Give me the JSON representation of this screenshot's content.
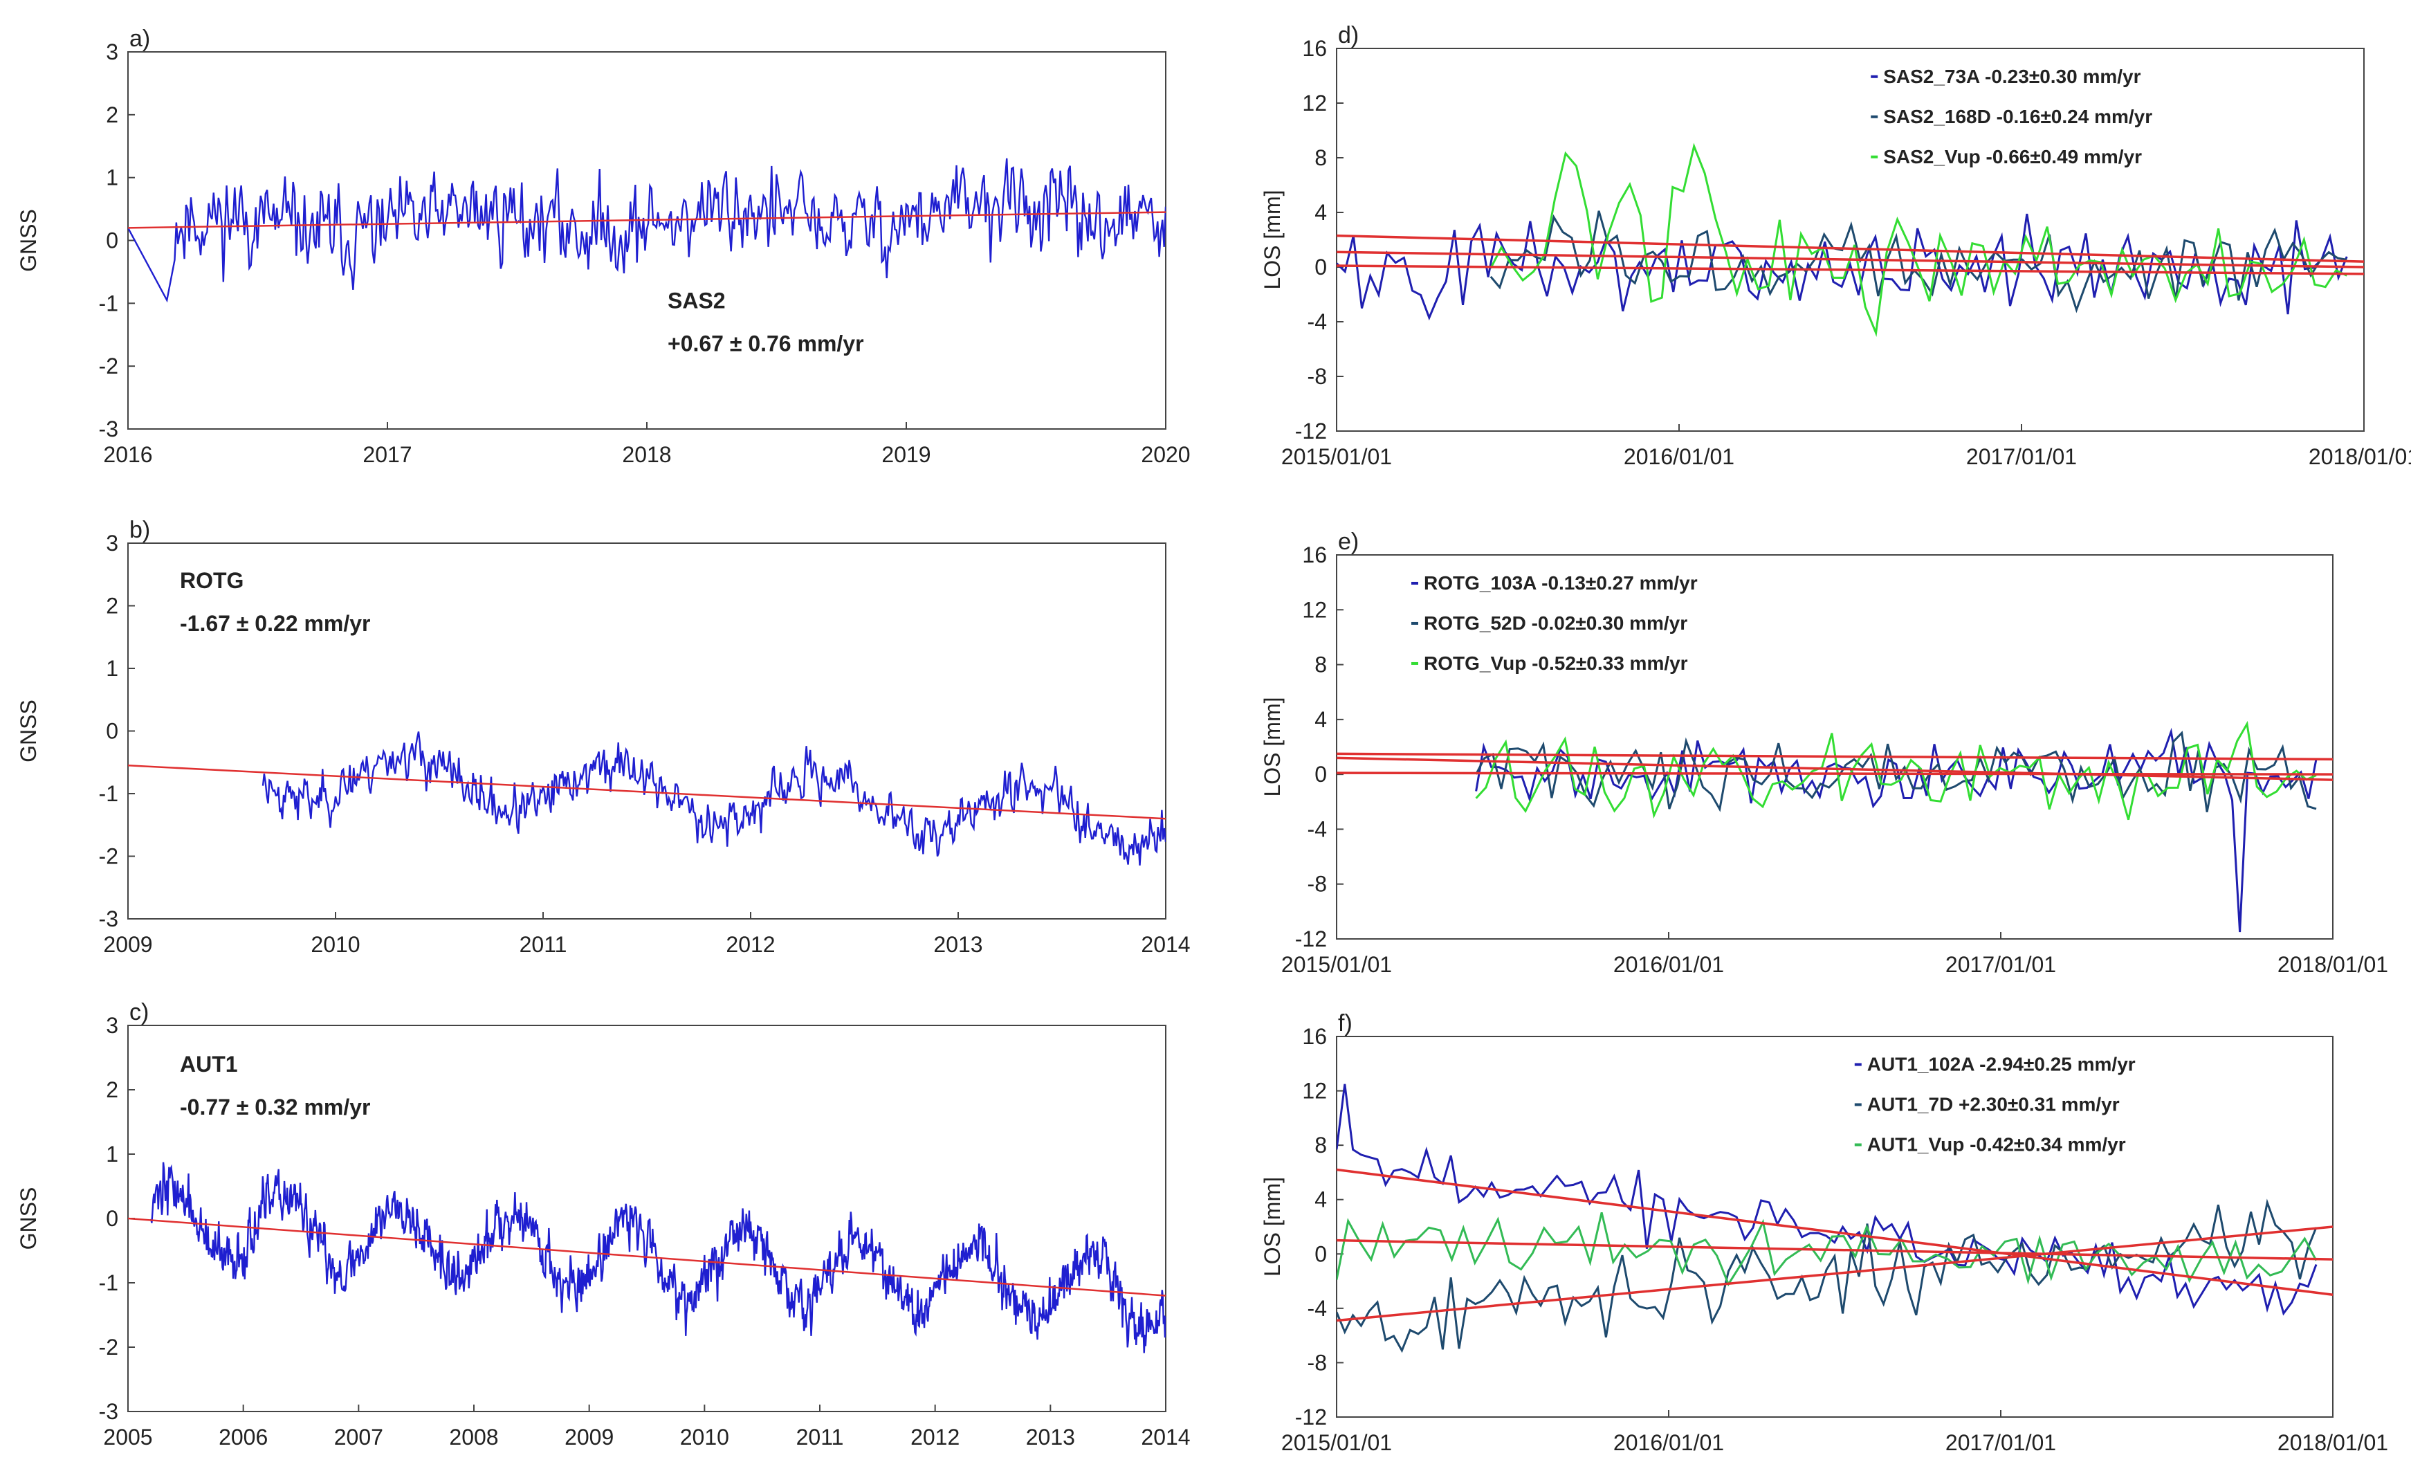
{
  "chart_data": [
    {
      "panel": "a)",
      "type": "line",
      "ylabel": "GNSS",
      "xlim": [
        2016,
        2020
      ],
      "ylim": [
        -3,
        3
      ],
      "xticks": [
        "2016",
        "2017",
        "2018",
        "2019",
        "2020"
      ],
      "yticks": [
        "3",
        "2",
        "1",
        "0",
        "-1",
        "-2",
        "-3"
      ],
      "station": "SAS2",
      "rate": "+0.67 ± 0.76 mm/yr",
      "annotation_position": "lower-middle",
      "series": [
        {
          "name": "SAS2 daily",
          "color": "#1f1fd0",
          "x_start": 2016.0,
          "x_end": 2020.0,
          "data_start": 2016.0,
          "gap": [
            2016.0,
            2016.2
          ],
          "amplitude": 0.85,
          "seasonal": 0.15,
          "seed": 11
        }
      ],
      "trend": {
        "color": "#e03030",
        "x": [
          2016,
          2020
        ],
        "y": [
          0.2,
          0.45
        ]
      }
    },
    {
      "panel": "b)",
      "type": "line",
      "ylabel": "GNSS",
      "xlim": [
        2009,
        2014
      ],
      "ylim": [
        -3,
        3
      ],
      "xticks": [
        "2009",
        "2010",
        "2011",
        "2012",
        "2013",
        "2014"
      ],
      "yticks": [
        "3",
        "2",
        "1",
        "0",
        "-1",
        "-2",
        "-3"
      ],
      "station": "ROTG",
      "rate": "-1.67 ± 0.22 mm/yr",
      "annotation_position": "top-left",
      "series": [
        {
          "name": "ROTG daily",
          "color": "#1f1fd0",
          "x_start": 2009.65,
          "x_end": 2014.0,
          "amplitude": 0.45,
          "seasonal": 0.4,
          "seed": 23
        }
      ],
      "trend": {
        "color": "#e03030",
        "x": [
          2009,
          2014
        ],
        "y": [
          -0.55,
          -1.4
        ]
      }
    },
    {
      "panel": "c)",
      "type": "line",
      "ylabel": "GNSS",
      "xlim": [
        2005,
        2014
      ],
      "ylim": [
        -3,
        3
      ],
      "xticks": [
        "2005",
        "2006",
        "2007",
        "2008",
        "2009",
        "2010",
        "2011",
        "2012",
        "2013",
        "2014"
      ],
      "yticks": [
        "3",
        "2",
        "1",
        "0",
        "-1",
        "-2",
        "-3"
      ],
      "station": "AUT1",
      "rate": "-0.77 ± 0.32 mm/yr",
      "annotation_position": "top-left",
      "series": [
        {
          "name": "AUT1 daily",
          "color": "#1f1fd0",
          "x_start": 2005.2,
          "x_end": 2014.0,
          "amplitude": 0.5,
          "seasonal": 0.55,
          "seed": 37
        }
      ],
      "trend": {
        "color": "#e03030",
        "x": [
          2005,
          2014
        ],
        "y": [
          0.0,
          -1.2
        ]
      }
    },
    {
      "panel": "d)",
      "type": "line",
      "ylabel": "LOS [mm]",
      "xlim": [
        0,
        3
      ],
      "ylim": [
        -12,
        16
      ],
      "xticks": [
        "2015/01/01",
        "2016/01/01",
        "2017/01/01",
        "2018/01/01"
      ],
      "yticks": [
        "16",
        "12",
        "8",
        "4",
        "0",
        "-4",
        "-8",
        "-12"
      ],
      "legend": [
        "SAS2_73A -0.23±0.30 mm/yr",
        "SAS2_168D -0.16±0.24 mm/yr",
        "SAS2_Vup -0.66±0.49 mm/yr"
      ],
      "legend_colors": [
        "#1f1fb0",
        "#1e4a6e",
        "#33dd33"
      ],
      "series": [
        {
          "name": "SAS2_73A",
          "color": "#1f1fb0",
          "x_start": 0.0,
          "x_end": 2.95,
          "n": 120,
          "amplitude": 3.2,
          "seed": 101
        },
        {
          "name": "SAS2_168D",
          "color": "#1e4a6e",
          "x_start": 0.45,
          "x_end": 2.95,
          "n": 95,
          "amplitude": 2.8,
          "seed": 103
        },
        {
          "name": "SAS2_Vup",
          "color": "#33dd33",
          "x_start": 0.45,
          "x_end": 2.95,
          "n": 80,
          "amplitude": 3.5,
          "seed": 107,
          "bumps": [
            [
              0.68,
              9.5
            ],
            [
              0.85,
              6.5
            ],
            [
              1.05,
              9.5
            ]
          ]
        }
      ],
      "trends": [
        {
          "color": "#e03030",
          "x": [
            0,
            3
          ],
          "y": [
            2.3,
            0.4
          ]
        },
        {
          "color": "#e03030",
          "x": [
            0,
            3
          ],
          "y": [
            1.1,
            0.0
          ]
        },
        {
          "color": "#e03030",
          "x": [
            0,
            3
          ],
          "y": [
            0.1,
            -0.5
          ]
        }
      ]
    },
    {
      "panel": "e)",
      "type": "line",
      "ylabel": "LOS [mm]",
      "xlim": [
        0,
        3
      ],
      "ylim": [
        -12,
        16
      ],
      "xticks": [
        "2015/01/01",
        "2016/01/01",
        "2017/01/01",
        "2018/01/01"
      ],
      "yticks": [
        "16",
        "12",
        "8",
        "4",
        "0",
        "-4",
        "-8",
        "-12"
      ],
      "legend": [
        "ROTG_103A -0.13±0.27 mm/yr",
        "ROTG_52D -0.02±0.30 mm/yr",
        "ROTG_Vup -0.52±0.33 mm/yr"
      ],
      "legend_colors": [
        "#1f1fb0",
        "#1e4a6e",
        "#33dd33"
      ],
      "series": [
        {
          "name": "ROTG_103A",
          "color": "#1f1fb0",
          "x_start": 0.42,
          "x_end": 2.95,
          "n": 110,
          "amplitude": 2.2,
          "seed": 201,
          "spike": [
            2.72,
            -11.5
          ]
        },
        {
          "name": "ROTG_52D",
          "color": "#1e4a6e",
          "x_start": 0.42,
          "x_end": 2.95,
          "n": 100,
          "amplitude": 2.4,
          "seed": 203
        },
        {
          "name": "ROTG_Vup",
          "color": "#33dd33",
          "x_start": 0.42,
          "x_end": 2.95,
          "n": 85,
          "amplitude": 2.6,
          "seed": 207
        }
      ],
      "trends": [
        {
          "color": "#e03030",
          "x": [
            0,
            3
          ],
          "y": [
            1.5,
            1.1
          ]
        },
        {
          "color": "#e03030",
          "x": [
            0,
            3
          ],
          "y": [
            1.2,
            -0.4
          ]
        },
        {
          "color": "#e03030",
          "x": [
            0,
            3
          ],
          "y": [
            0.1,
            0.0
          ]
        }
      ]
    },
    {
      "panel": "f)",
      "type": "line",
      "ylabel": "LOS [mm]",
      "xlim": [
        0,
        3
      ],
      "ylim": [
        -12,
        16
      ],
      "xticks": [
        "2015/01/01",
        "2016/01/01",
        "2017/01/01",
        "2018/01/01"
      ],
      "yticks": [
        "16",
        "12",
        "8",
        "4",
        "0",
        "-4",
        "-8",
        "-12"
      ],
      "legend": [
        "AUT1_102A  -2.94±0.25 mm/yr",
        "AUT1_7D +2.30±0.31 mm/yr",
        "AUT1_Vup -0.42±0.34 mm/yr"
      ],
      "legend_colors": [
        "#1f1fb0",
        "#1e4a6e",
        "#33bb55"
      ],
      "series": [
        {
          "name": "AUT1_102A",
          "color": "#1f1fb0",
          "x_start": 0.0,
          "x_end": 2.95,
          "n": 120,
          "amplitude": 2.0,
          "seed": 301,
          "trend_line": [
            6.5,
            -3.0
          ],
          "start_spike": 12.5
        },
        {
          "name": "AUT1_7D",
          "color": "#1e4a6e",
          "x_start": 0.0,
          "x_end": 2.95,
          "n": 120,
          "amplitude": 2.8,
          "seed": 303,
          "trend_line": [
            -5.0,
            2.0
          ]
        },
        {
          "name": "AUT1_Vup",
          "color": "#33bb55",
          "x_start": 0.0,
          "x_end": 2.95,
          "n": 85,
          "amplitude": 2.2,
          "seed": 307,
          "trend_line": [
            1.0,
            -0.5
          ]
        }
      ],
      "trends": [
        {
          "color": "#e03030",
          "x": [
            0,
            3
          ],
          "y": [
            6.2,
            -3.0
          ]
        },
        {
          "color": "#e03030",
          "x": [
            0,
            3
          ],
          "y": [
            -4.9,
            2.0
          ]
        },
        {
          "color": "#e03030",
          "x": [
            0,
            3
          ],
          "y": [
            1.0,
            -0.4
          ]
        }
      ]
    }
  ]
}
